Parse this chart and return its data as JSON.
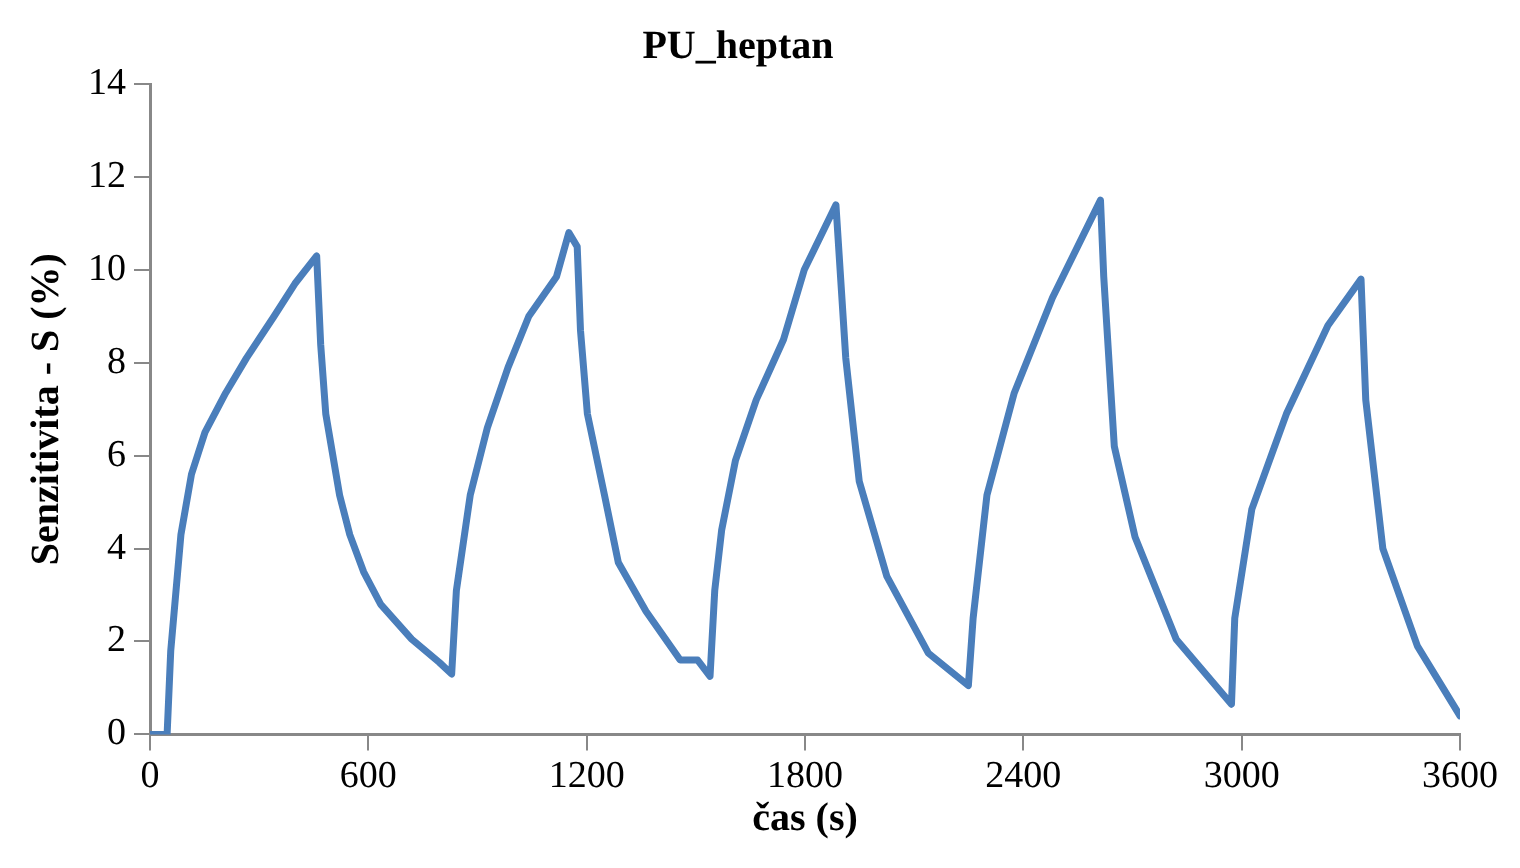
{
  "chart_data": {
    "type": "line",
    "title": "PU_heptan",
    "xlabel": "čas (s)",
    "ylabel": "Senzitivita - S (%)",
    "xlim": [
      0,
      3600
    ],
    "xticks": [
      0,
      600,
      1200,
      1800,
      2400,
      3000,
      3600
    ],
    "ylim": [
      0,
      14
    ],
    "yticks": [
      0,
      2,
      4,
      6,
      8,
      10,
      12,
      14
    ],
    "grid": false,
    "legend": false,
    "marker": "none",
    "line_style": "solid",
    "series": [
      {
        "color": "#4a7ebb",
        "x": [
          0,
          47,
          57,
          85,
          114,
          151,
          208,
          265,
          341,
          398,
          458,
          469,
          483,
          521,
          549,
          587,
          634,
          719,
          795,
          829,
          842,
          880,
          927,
          984,
          1041,
          1117,
          1151,
          1174,
          1183,
          1202,
          1249,
          1287,
          1363,
          1457,
          1505,
          1539,
          1552,
          1571,
          1609,
          1666,
          1741,
          1798,
          1885,
          1912,
          1949,
          2025,
          2139,
          2249,
          2262,
          2300,
          2375,
          2480,
          2612,
          2621,
          2650,
          2707,
          2820,
          2972,
          2981,
          3028,
          3123,
          3237,
          3328,
          3341,
          3388,
          3483,
          3600
        ],
        "values": [
          0,
          0,
          1.8,
          4.3,
          5.6,
          6.5,
          7.35,
          8.1,
          9.0,
          9.7,
          10.3,
          8.4,
          6.9,
          5.15,
          4.3,
          3.5,
          2.8,
          2.05,
          1.55,
          1.3,
          3.1,
          5.15,
          6.6,
          7.9,
          9.0,
          9.85,
          10.8,
          10.5,
          8.7,
          6.9,
          5.15,
          3.7,
          2.65,
          1.6,
          1.6,
          1.25,
          3.1,
          4.4,
          5.9,
          7.2,
          8.5,
          10.0,
          11.4,
          8.1,
          5.45,
          3.4,
          1.75,
          1.05,
          2.5,
          5.15,
          7.35,
          9.4,
          11.5,
          9.85,
          6.2,
          4.25,
          2.05,
          0.65,
          2.5,
          4.85,
          6.9,
          8.8,
          9.8,
          7.2,
          4.0,
          1.9,
          0.4
        ]
      }
    ]
  }
}
